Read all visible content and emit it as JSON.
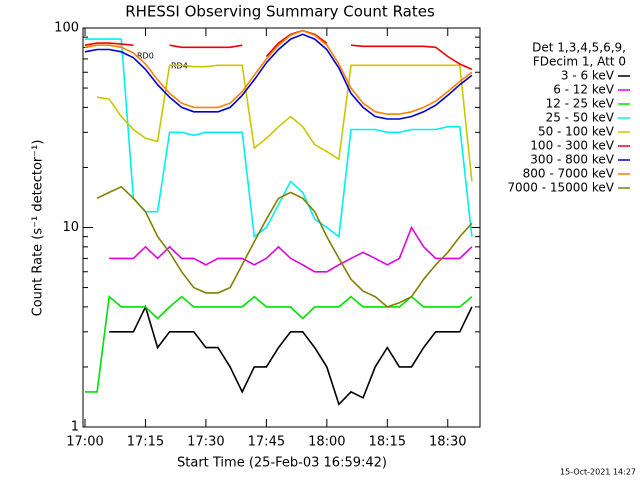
{
  "chart_data": {
    "type": "line",
    "title": "RHESSI Observing Summary Count Rates",
    "x_label": "Start Time (25-Feb-03 16:59:42)",
    "y_label": "Count Rate (s⁻¹ detector⁻¹)",
    "footer": "15-Oct-2021 14:27",
    "legend_header": [
      "Det 1,3,4,5,6,9,",
      "FDecim 1, Att 0"
    ],
    "annotations": [
      "RD0",
      "RD4"
    ],
    "log_y": true,
    "xlim": [
      "17:00",
      "18:38"
    ],
    "xticks": [
      "17:00",
      "17:15",
      "17:30",
      "17:45",
      "18:00",
      "18:15",
      "18:30"
    ],
    "ylim": [
      1,
      100
    ],
    "yticks": [
      1,
      10,
      100
    ],
    "yminorticks": [
      2,
      3,
      4,
      5,
      6,
      7,
      8,
      9,
      20,
      30,
      40,
      50,
      60,
      70,
      80,
      90
    ],
    "x": [
      "17:00",
      "17:03",
      "17:06",
      "17:09",
      "17:12",
      "17:15",
      "17:18",
      "17:21",
      "17:24",
      "17:27",
      "17:30",
      "17:33",
      "17:36",
      "17:39",
      "17:42",
      "17:45",
      "17:48",
      "17:51",
      "17:54",
      "17:57",
      "18:00",
      "18:03",
      "18:06",
      "18:09",
      "18:12",
      "18:15",
      "18:18",
      "18:21",
      "18:24",
      "18:27",
      "18:30",
      "18:33",
      "18:36"
    ],
    "series": [
      {
        "name": "3 - 6 keV",
        "color": "#000000",
        "values": [
          null,
          null,
          3,
          3,
          3,
          4,
          2.5,
          3,
          3,
          3,
          2.5,
          2.5,
          2,
          1.5,
          2,
          2,
          2.5,
          3,
          3,
          2.5,
          2,
          1.3,
          1.5,
          1.4,
          2,
          2.5,
          2,
          2,
          2.5,
          3,
          3,
          3,
          4
        ]
      },
      {
        "name": "6 - 12 keV",
        "color": "#e000e0",
        "values": [
          null,
          null,
          7,
          7,
          7,
          8,
          7,
          8,
          7,
          7,
          6.5,
          7,
          7,
          7,
          6.5,
          7,
          8,
          7,
          6.5,
          6,
          6,
          6.5,
          7,
          7.5,
          7,
          6.5,
          7,
          10,
          8,
          7,
          7,
          7,
          8
        ]
      },
      {
        "name": "12 - 25 keV",
        "color": "#00e000",
        "values": [
          1.5,
          1.5,
          4.5,
          4,
          4,
          4,
          3.5,
          4,
          4.5,
          4,
          4,
          4,
          4,
          4,
          4.5,
          4,
          4,
          4,
          3.5,
          4,
          4,
          4,
          4.5,
          4,
          4,
          4,
          4,
          4.5,
          4,
          4,
          4,
          4,
          4.5
        ]
      },
      {
        "name": "25 - 50 keV",
        "color": "#00f0f0",
        "values": [
          88,
          88,
          88,
          88,
          14,
          12,
          12,
          30,
          30,
          29,
          30,
          30,
          30,
          30,
          9,
          10,
          13,
          17,
          15,
          11,
          10,
          9,
          31,
          31,
          31,
          30,
          30,
          31,
          31,
          31,
          32,
          32,
          9
        ]
      },
      {
        "name": "50 - 100 keV",
        "color": "#c8c800",
        "values": [
          null,
          45,
          44,
          36,
          31,
          28,
          27,
          65,
          65,
          64,
          64,
          65,
          65,
          65,
          25,
          28,
          32,
          36,
          32,
          26,
          24,
          22,
          65,
          65,
          65,
          65,
          65,
          65,
          65,
          65,
          65,
          65,
          17
        ]
      },
      {
        "name": "100 - 300 keV",
        "color": "#f00000",
        "values": [
          82,
          84,
          84,
          83,
          82,
          null,
          null,
          82,
          80,
          80,
          80,
          80,
          80,
          82,
          null,
          72,
          84,
          93,
          97,
          93,
          84,
          null,
          82,
          81,
          81,
          81,
          81,
          81,
          81,
          80,
          72,
          66,
          62
        ]
      },
      {
        "name": "300 - 800 keV",
        "color": "#0000d0",
        "values": [
          76,
          78,
          78,
          76,
          71,
          62,
          52,
          45,
          40,
          38,
          38,
          38,
          40,
          46,
          55,
          67,
          78,
          88,
          93,
          88,
          78,
          63,
          47,
          40,
          36,
          35,
          35,
          36,
          38,
          41,
          46,
          52,
          58
        ]
      },
      {
        "name": "800 - 7000 keV",
        "color": "#ff8000",
        "values": [
          80,
          82,
          82,
          80,
          75,
          66,
          55,
          47,
          42,
          40,
          40,
          40,
          42,
          48,
          58,
          70,
          82,
          92,
          97,
          92,
          82,
          66,
          50,
          42,
          38,
          37,
          37,
          38,
          40,
          43,
          48,
          54,
          60
        ]
      },
      {
        "name": "7000 - 15000 keV",
        "color": "#808000",
        "values": [
          null,
          14,
          15,
          16,
          14,
          12,
          9,
          7.5,
          6,
          5,
          4.7,
          4.7,
          5,
          6.5,
          8.5,
          11,
          14,
          15,
          14,
          12,
          9,
          7,
          5.5,
          4.8,
          4.5,
          4,
          4.2,
          4.5,
          5.5,
          6.5,
          7.5,
          9,
          10.5
        ]
      }
    ]
  }
}
